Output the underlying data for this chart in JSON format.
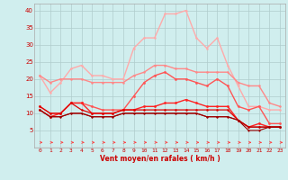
{
  "background_color": "#d0eeee",
  "grid_color": "#b0cccc",
  "x_labels": [
    "0",
    "1",
    "2",
    "3",
    "4",
    "5",
    "6",
    "7",
    "8",
    "9",
    "10",
    "11",
    "12",
    "13",
    "14",
    "15",
    "16",
    "17",
    "18",
    "19",
    "20",
    "21",
    "22",
    "23"
  ],
  "xlabel": "Vent moyen/en rafales ( km/h )",
  "ylim": [
    0,
    42
  ],
  "yticks": [
    5,
    10,
    15,
    20,
    25,
    30,
    35,
    40
  ],
  "series": [
    {
      "color": "#ffaaaa",
      "values": [
        21,
        16,
        19,
        23,
        24,
        21,
        21,
        20,
        20,
        29,
        32,
        32,
        39,
        39,
        40,
        32,
        29,
        32,
        24,
        18,
        12,
        12,
        11,
        11
      ],
      "marker": "o",
      "markersize": 1.8,
      "linewidth": 1.0
    },
    {
      "color": "#ff8888",
      "values": [
        21,
        19,
        20,
        20,
        20,
        19,
        19,
        19,
        19,
        21,
        22,
        24,
        24,
        23,
        23,
        22,
        22,
        22,
        22,
        19,
        18,
        18,
        13,
        12
      ],
      "marker": "o",
      "markersize": 1.8,
      "linewidth": 1.0
    },
    {
      "color": "#ff5555",
      "values": [
        12,
        10,
        10,
        13,
        13,
        12,
        11,
        11,
        11,
        15,
        19,
        21,
        22,
        20,
        20,
        19,
        18,
        20,
        18,
        12,
        11,
        12,
        7,
        7
      ],
      "marker": "o",
      "markersize": 2.0,
      "linewidth": 1.0
    },
    {
      "color": "#ff2222",
      "values": [
        11,
        9,
        10,
        13,
        13,
        10,
        10,
        10,
        11,
        11,
        12,
        12,
        13,
        13,
        14,
        13,
        12,
        12,
        12,
        8,
        6,
        7,
        6,
        6
      ],
      "marker": "o",
      "markersize": 2.0,
      "linewidth": 1.0
    },
    {
      "color": "#dd0000",
      "values": [
        12,
        10,
        10,
        13,
        11,
        10,
        10,
        10,
        11,
        11,
        11,
        11,
        11,
        11,
        11,
        11,
        11,
        11,
        11,
        8,
        6,
        6,
        6,
        6
      ],
      "marker": "o",
      "markersize": 1.8,
      "linewidth": 0.9
    },
    {
      "color": "#bb0000",
      "values": [
        11,
        9,
        9,
        10,
        10,
        9,
        9,
        9,
        10,
        10,
        10,
        10,
        10,
        10,
        10,
        10,
        9,
        9,
        9,
        8,
        6,
        6,
        6,
        6
      ],
      "marker": "o",
      "markersize": 1.5,
      "linewidth": 0.8
    },
    {
      "color": "#990000",
      "values": [
        11,
        9,
        9,
        10,
        10,
        9,
        9,
        9,
        10,
        10,
        10,
        10,
        10,
        10,
        10,
        10,
        9,
        9,
        9,
        8,
        5,
        5,
        6,
        6
      ],
      "marker": "o",
      "markersize": 1.5,
      "linewidth": 0.8
    }
  ],
  "arrow_color": "#ff4444"
}
